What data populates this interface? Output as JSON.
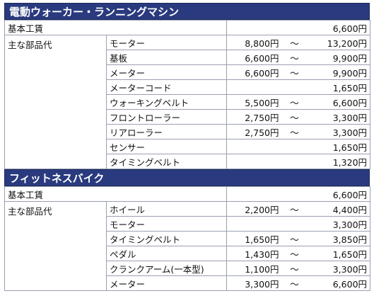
{
  "sections": [
    {
      "title": "電動ウォーカー・ランニングマシン",
      "base_label": "基本工賃",
      "base_price": "6,600円",
      "parts_label": "主な部品代",
      "parts": [
        {
          "name": "モーター",
          "low": "8,800円",
          "sep": "～",
          "high": "13,200円"
        },
        {
          "name": "基板",
          "low": "6,600円",
          "sep": "～",
          "high": "9,900円"
        },
        {
          "name": "メーター",
          "low": "6,600円",
          "sep": "～",
          "high": "9,900円"
        },
        {
          "name": "メーターコード",
          "price": "1,650円"
        },
        {
          "name": "ウォーキングベルト",
          "low": "5,500円",
          "sep": "～",
          "high": "6,600円"
        },
        {
          "name": "フロントローラー",
          "low": "2,750円",
          "sep": "～",
          "high": "3,300円"
        },
        {
          "name": "リアローラー",
          "low": "2,750円",
          "sep": "～",
          "high": "3,300円"
        },
        {
          "name": "センサー",
          "price": "1,650円"
        },
        {
          "name": "タイミングベルト",
          "price": "1,320円"
        }
      ]
    },
    {
      "title": "フィットネスバイク",
      "base_label": "基本工賃",
      "base_price": "6,600円",
      "parts_label": "主な部品代",
      "parts": [
        {
          "name": "ホイール",
          "low": "2,200円",
          "sep": "～",
          "high": "4,400円"
        },
        {
          "name": "モーター",
          "price": "3,300円"
        },
        {
          "name": "タイミングベルト",
          "low": "1,650円",
          "sep": "～",
          "high": "3,850円"
        },
        {
          "name": "ペダル",
          "low": "1,430円",
          "sep": "～",
          "high": "1,650円"
        },
        {
          "name": "クランクアーム(一本型)",
          "low": "1,100円",
          "sep": "～",
          "high": "3,300円"
        },
        {
          "name": "メーター",
          "low": "3,300円",
          "sep": "～",
          "high": "6,600円"
        }
      ]
    }
  ]
}
